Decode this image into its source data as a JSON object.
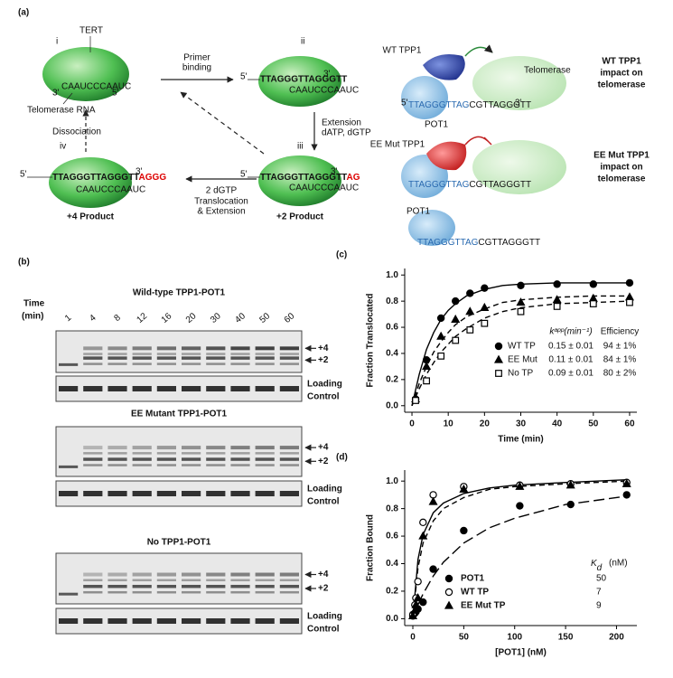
{
  "panel_labels": [
    "(a)",
    "(b)",
    "(c)",
    "(d)"
  ],
  "diagram": {
    "five_prime": "5'",
    "three_prime": "3'",
    "steps": [
      "i",
      "ii",
      "iii",
      "iv"
    ],
    "tert": "TERT",
    "rna": "Telomerase RNA",
    "template": "CAAUCCCAAUC",
    "primer_binding": [
      "Primer",
      "binding"
    ],
    "extension": "Extension",
    "dntp": "dATP, dGTP",
    "translocation": [
      "2 dGTP",
      "Translocation",
      "& Extension"
    ],
    "dissociation": "Dissociation",
    "primer": "TTAGGGTTAGGGTT",
    "added_2": "AG",
    "added_4": "AGGG",
    "product_2": "+2 Product",
    "product_4": "+4 Product",
    "models": [
      {
        "tpp1": "WT TPP1",
        "telomerase": "Telomerase",
        "pot1": "POT1",
        "seq_bound": "TTAGGGTTAG",
        "seq_free": "CGTTAGGGTT",
        "impact": [
          "WT TPP1",
          "impact on",
          "telomerase"
        ]
      },
      {
        "tpp1": "EE Mut TPP1",
        "seq_bound": "TTAGGGTTAG",
        "seq_free": "CGTTAGGGTT",
        "impact": [
          "EE Mut TPP1",
          "impact on",
          "telomerase"
        ]
      },
      {
        "pot1": "POT1",
        "seq_bound": "TTAGGGTTAG",
        "seq_free": "CGTTAGGGTT"
      }
    ]
  },
  "gels": {
    "time_label": "Time",
    "time_unit": "(min)",
    "lanes": [
      "1",
      "4",
      "8",
      "12",
      "16",
      "20",
      "30",
      "40",
      "50",
      "60"
    ],
    "titles": [
      "Wild-type TPP1-POT1",
      "EE Mutant TPP1-POT1",
      "No TPP1-POT1"
    ],
    "plus4": "+4",
    "plus2": "+2",
    "loading": [
      "Loading",
      "Control"
    ]
  },
  "chart_data": [
    {
      "type": "scatter",
      "x_label": "Time (min)",
      "y_label": "Fraction Translocated",
      "x": [
        1,
        4,
        8,
        12,
        16,
        20,
        30,
        40,
        50,
        60
      ],
      "fit_x": [
        0,
        2,
        4,
        6,
        8,
        10,
        12,
        15,
        20,
        25,
        30,
        40,
        50,
        60
      ],
      "xlim": [
        -2,
        62
      ],
      "ylim": [
        -0.05,
        1.05
      ],
      "xticks": [
        0,
        10,
        20,
        30,
        40,
        50,
        60
      ],
      "yticks": [
        {
          "value": 0,
          "label": "0.0"
        },
        0.2,
        0.4,
        0.6,
        0.8,
        {
          "value": 1,
          "label": "1.0"
        }
      ],
      "legend_header": [
        "kᵃᵖᵖ(min⁻¹)",
        "Efficiency"
      ],
      "series": [
        {
          "name": "WT TP",
          "marker": "circle",
          "filled": true,
          "dash": "solid",
          "color": "#000000",
          "values": [
            0.05,
            0.35,
            0.67,
            0.8,
            0.86,
            0.9,
            0.92,
            0.93,
            0.93,
            0.94
          ],
          "fit": [
            0,
            0.24,
            0.43,
            0.56,
            0.66,
            0.73,
            0.78,
            0.84,
            0.89,
            0.92,
            0.93,
            0.94,
            0.94,
            0.94
          ],
          "rate": "0.15 ± 0.01",
          "efficiency": "94 ± 1%"
        },
        {
          "name": "EE Mut",
          "marker": "triangle",
          "filled": true,
          "dash": "dashed",
          "color": "#000000",
          "values": [
            0.05,
            0.3,
            0.53,
            0.66,
            0.72,
            0.75,
            0.79,
            0.81,
            0.82,
            0.83
          ],
          "fit": [
            0,
            0.17,
            0.3,
            0.41,
            0.49,
            0.56,
            0.62,
            0.68,
            0.74,
            0.79,
            0.81,
            0.83,
            0.84,
            0.84
          ],
          "rate": "0.11 ± 0.01",
          "efficiency": "84 ± 1%"
        },
        {
          "name": "No TP",
          "marker": "square",
          "filled": false,
          "dash": "dashed",
          "color": "#000000",
          "values": [
            0.04,
            0.19,
            0.38,
            0.5,
            0.58,
            0.63,
            0.72,
            0.76,
            0.78,
            0.79
          ],
          "fit": [
            0,
            0.13,
            0.24,
            0.33,
            0.41,
            0.47,
            0.53,
            0.59,
            0.67,
            0.72,
            0.75,
            0.78,
            0.79,
            0.8
          ],
          "rate": "0.09 ± 0.01",
          "efficiency": "80 ± 2%"
        }
      ]
    },
    {
      "type": "scatter",
      "x_label": "[POT1] (nM)",
      "y_label": "Fraction Bound",
      "x": [
        0,
        2,
        3,
        5,
        10,
        20,
        50,
        105,
        155,
        210
      ],
      "fit_x": [
        0,
        5,
        10,
        20,
        30,
        50,
        75,
        100,
        150,
        210
      ],
      "xlim": [
        -8,
        220
      ],
      "ylim": [
        -0.05,
        1.08
      ],
      "xticks": [
        0,
        50,
        100,
        150,
        200
      ],
      "yticks": [
        {
          "value": 0,
          "label": "0.0"
        },
        0.2,
        0.4,
        0.6,
        0.8,
        {
          "value": 1,
          "label": "1.0"
        }
      ],
      "legend_header": [
        "K",
        "d",
        "(nM)"
      ],
      "series": [
        {
          "name": "POT1",
          "marker": "circle",
          "filled": true,
          "dash": "longdash",
          "color": "#000000",
          "values": [
            0.02,
            0.04,
            0.05,
            0.07,
            0.12,
            0.36,
            0.64,
            0.82,
            0.83,
            0.9
          ],
          "fit": [
            0,
            0.1,
            0.18,
            0.31,
            0.41,
            0.55,
            0.66,
            0.73,
            0.83,
            0.89
          ],
          "kd": 50
        },
        {
          "name": "WT TP",
          "marker": "circle",
          "filled": false,
          "dash": "solid",
          "color": "#000000",
          "values": [
            0.03,
            0.1,
            0.15,
            0.27,
            0.7,
            0.9,
            0.96,
            0.97,
            0.98,
            0.99
          ],
          "fit": [
            0,
            0.43,
            0.61,
            0.77,
            0.84,
            0.91,
            0.95,
            0.97,
            0.99,
            1.01
          ],
          "kd": 7
        },
        {
          "name": "EE Mut TP",
          "marker": "triangle",
          "filled": true,
          "dash": "dashed",
          "color": "#000000",
          "values": [
            0.02,
            0.06,
            0.1,
            0.15,
            0.6,
            0.85,
            0.94,
            0.96,
            0.97,
            0.98
          ],
          "fit": [
            0,
            0.37,
            0.55,
            0.71,
            0.8,
            0.88,
            0.94,
            0.96,
            0.98,
            1.0
          ],
          "kd": 9
        }
      ]
    }
  ]
}
